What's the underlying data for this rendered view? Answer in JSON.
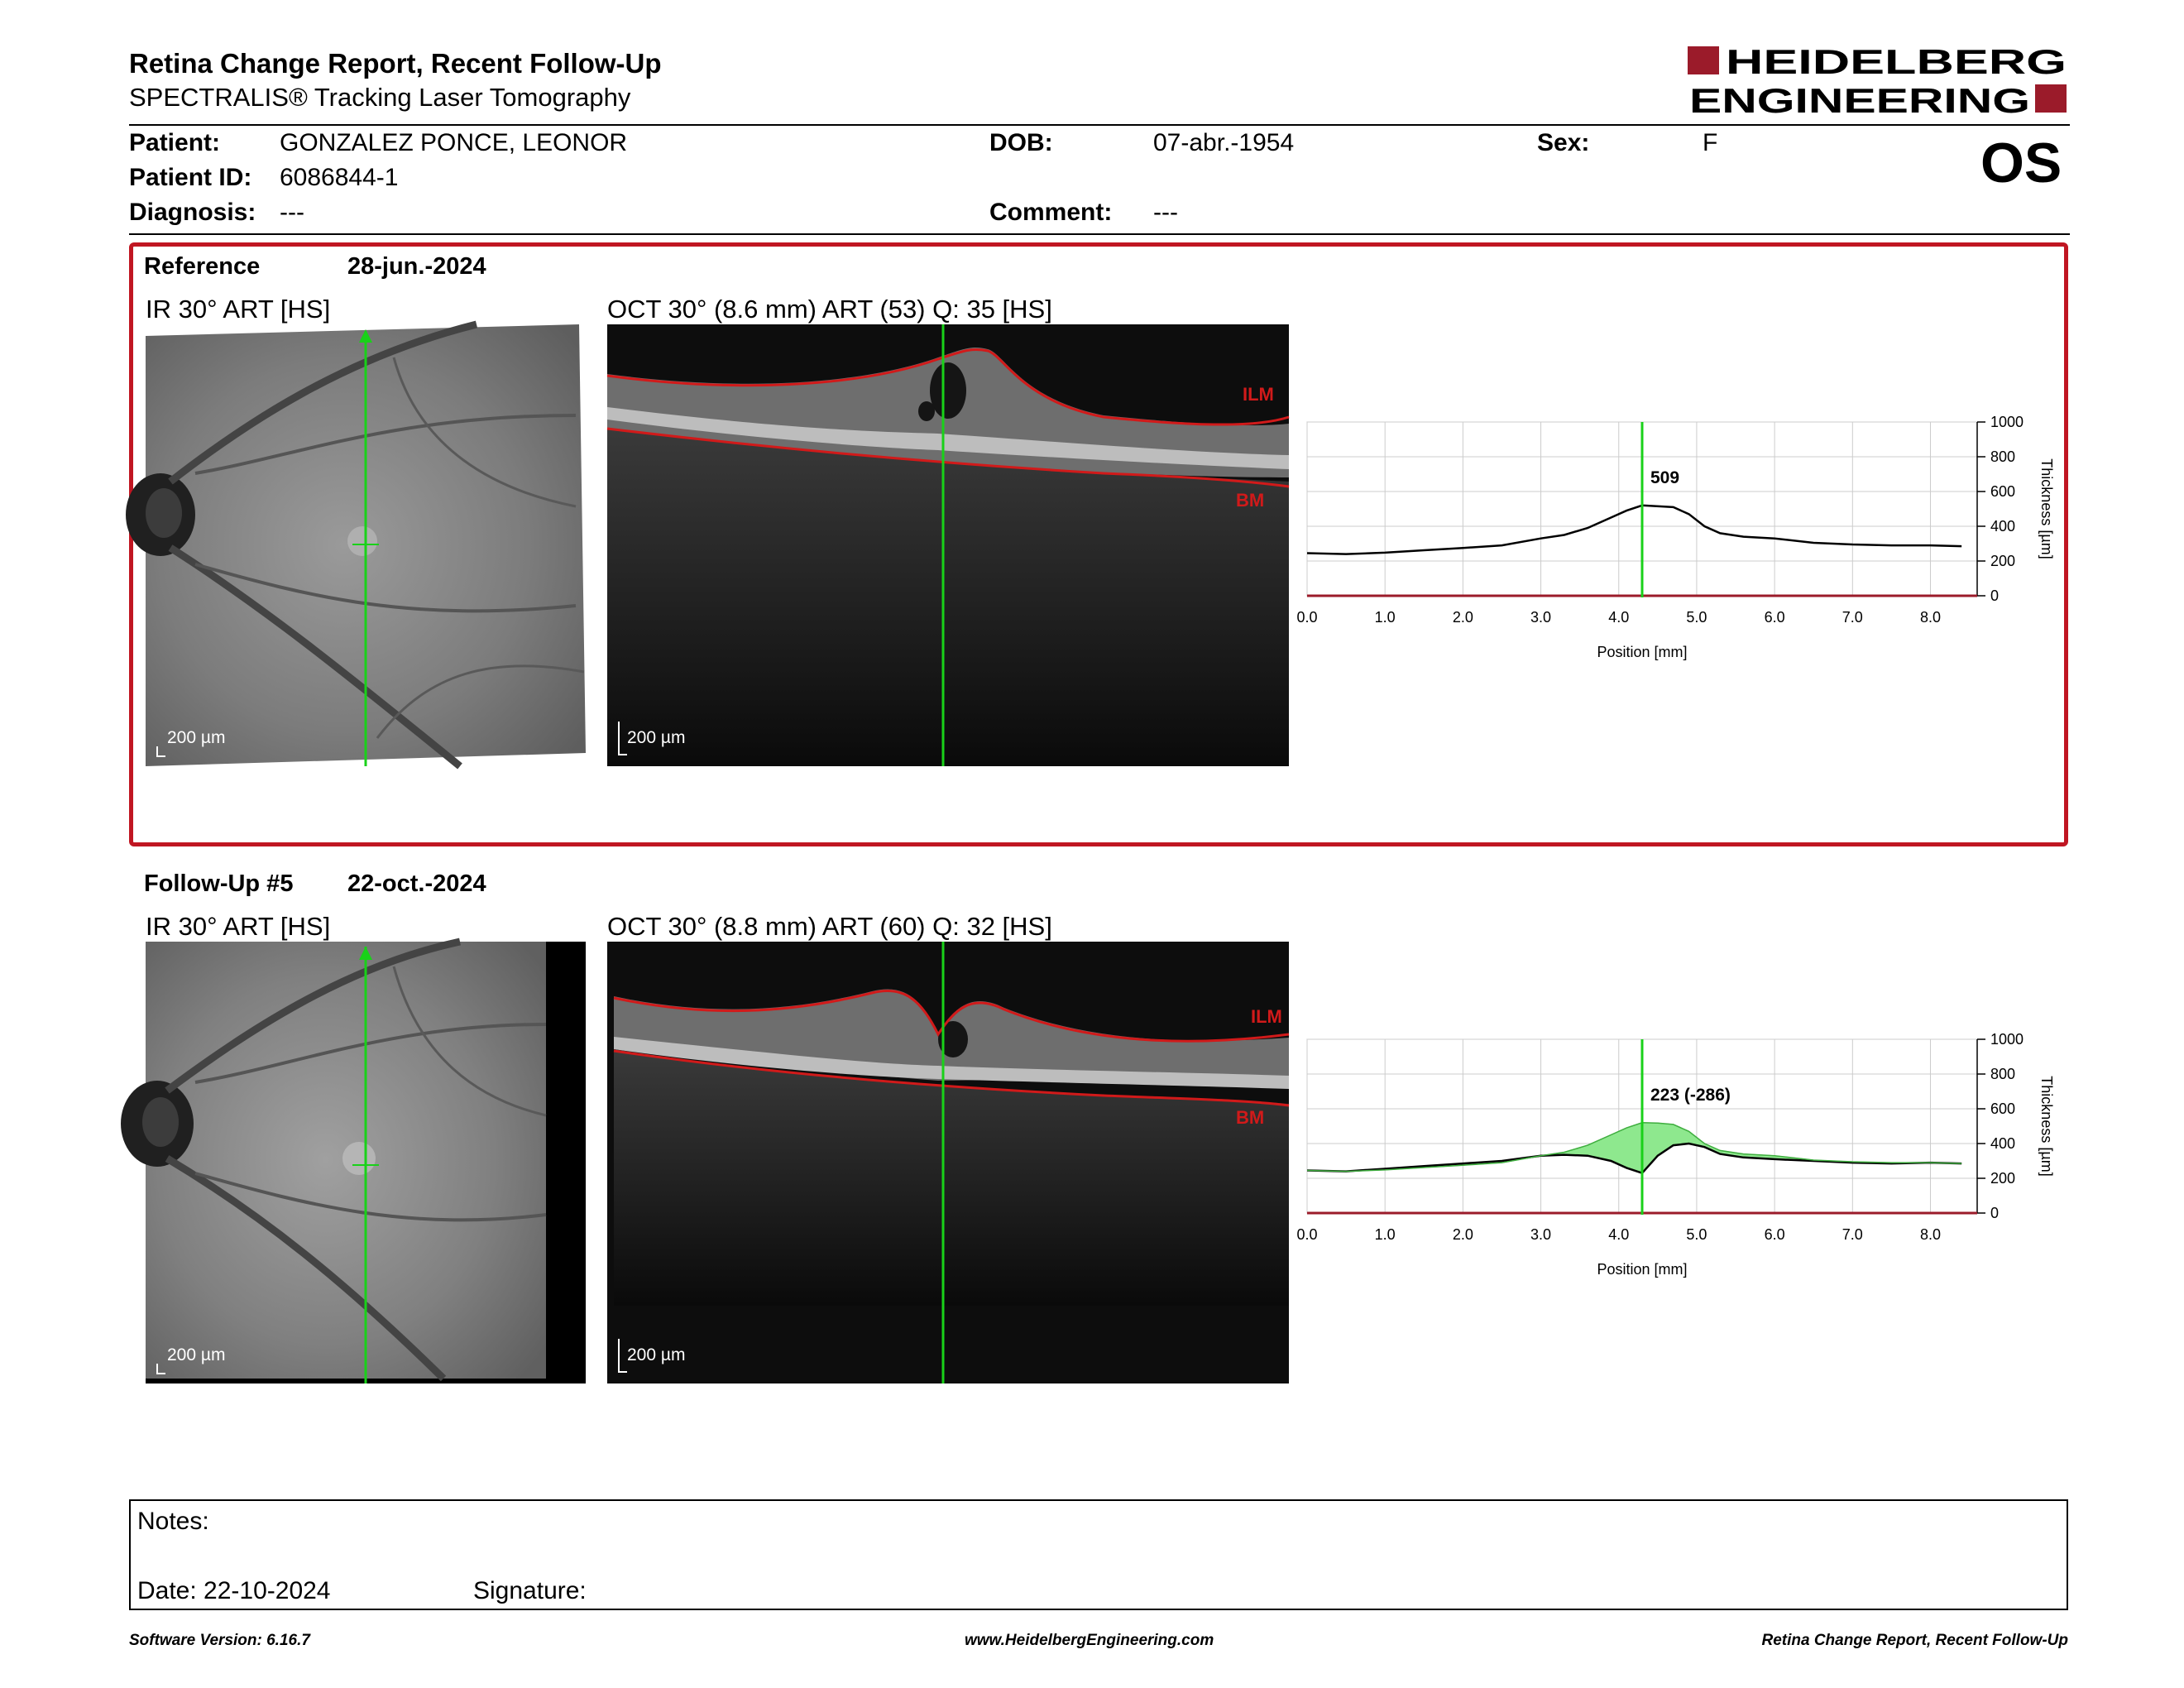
{
  "header": {
    "title": "Retina Change Report, Recent Follow-Up",
    "subtitle": "SPECTRALIS® Tracking Laser Tomography",
    "logo_line1": "HEIDELBERG",
    "logo_line2": "ENGINEERING"
  },
  "patient": {
    "patient_label": "Patient:",
    "patient_value": "GONZALEZ PONCE, LEONOR",
    "id_label": "Patient ID:",
    "id_value": "6086844-1",
    "diagnosis_label": "Diagnosis:",
    "diagnosis_value": "---",
    "dob_label": "DOB:",
    "dob_value": "07-abr.-1954",
    "comment_label": "Comment:",
    "comment_value": "---",
    "sex_label": "Sex:",
    "sex_value": "F",
    "eye": "OS"
  },
  "reference": {
    "label": "Reference",
    "date": "28-jun.-2024",
    "ir_title": "IR 30° ART [HS]",
    "oct_title": "OCT 30° (8.6 mm) ART (53) Q: 35 [HS]",
    "ir_scale": "200 µm",
    "oct_scale": "200 µm",
    "layer_top": "ILM",
    "layer_bottom": "BM"
  },
  "followup": {
    "label": "Follow-Up #5",
    "date": "22-oct.-2024",
    "ir_title": "IR 30° ART [HS]",
    "oct_title": "OCT 30° (8.8 mm) ART (60) Q: 32 [HS]",
    "ir_scale": "200 µm",
    "oct_scale": "200 µm",
    "layer_top": "ILM",
    "layer_bottom": "BM"
  },
  "chart_data": [
    {
      "type": "line",
      "xlabel": "Position [mm]",
      "ylabel": "Thickness [µm]",
      "xlim": [
        0,
        8.6
      ],
      "ylim": [
        0,
        1000
      ],
      "x_ticks": [
        "0.0",
        "1.0",
        "2.0",
        "3.0",
        "4.0",
        "5.0",
        "6.0",
        "7.0",
        "8.0"
      ],
      "y_ticks": [
        "0",
        "200",
        "400",
        "600",
        "800",
        "1000"
      ],
      "cursor_x": 4.3,
      "annotation": "509",
      "series": [
        {
          "x": [
            0.0,
            0.5,
            1.0,
            1.5,
            2.0,
            2.5,
            3.0,
            3.3,
            3.6,
            3.9,
            4.1,
            4.3,
            4.7,
            4.9,
            5.1,
            5.3,
            5.6,
            6.0,
            6.5,
            7.0,
            7.5,
            8.0,
            8.4
          ],
          "y": [
            245,
            240,
            248,
            262,
            275,
            290,
            330,
            350,
            390,
            450,
            490,
            520,
            510,
            470,
            400,
            360,
            340,
            330,
            305,
            295,
            290,
            290,
            285
          ]
        }
      ]
    },
    {
      "type": "line",
      "xlabel": "Position [mm]",
      "ylabel": "Thickness [µm]",
      "xlim": [
        0,
        8.6
      ],
      "ylim": [
        0,
        1000
      ],
      "x_ticks": [
        "0.0",
        "1.0",
        "2.0",
        "3.0",
        "4.0",
        "5.0",
        "6.0",
        "7.0",
        "8.0"
      ],
      "y_ticks": [
        "0",
        "200",
        "400",
        "600",
        "800",
        "1000"
      ],
      "cursor_x": 4.3,
      "annotation": "223 (-286)",
      "series": [
        {
          "x": [
            0.0,
            0.5,
            1.0,
            1.5,
            2.0,
            2.5,
            3.0,
            3.3,
            3.6,
            3.9,
            4.1,
            4.3,
            4.5,
            4.7,
            4.9,
            5.1,
            5.3,
            5.6,
            6.0,
            6.5,
            7.0,
            7.5,
            8.0,
            8.4
          ],
          "y": [
            245,
            240,
            255,
            270,
            285,
            300,
            330,
            335,
            330,
            300,
            260,
            230,
            330,
            390,
            400,
            380,
            340,
            320,
            310,
            300,
            290,
            285,
            290,
            285
          ]
        },
        {
          "x": [
            0.0,
            0.5,
            1.0,
            1.5,
            2.0,
            2.5,
            3.0,
            3.3,
            3.6,
            3.9,
            4.1,
            4.3,
            4.5,
            4.7,
            4.9,
            5.1,
            5.3,
            5.6,
            6.0,
            6.5,
            7.0,
            7.5,
            8.0,
            8.4
          ],
          "y": [
            245,
            240,
            248,
            262,
            275,
            290,
            330,
            350,
            390,
            450,
            490,
            520,
            518,
            510,
            470,
            400,
            360,
            340,
            330,
            305,
            295,
            290,
            290,
            285
          ]
        }
      ]
    }
  ],
  "notes": {
    "label": "Notes:",
    "date_label": "Date: 22-10-2024",
    "signature_label": "Signature:"
  },
  "footer": {
    "software": "Software Version: 6.16.7",
    "url": "www.HeidelbergEngineering.com",
    "report": "Retina Change Report, Recent Follow-Up"
  },
  "colors": {
    "brand": "#9b1b2a",
    "reference_border": "#c01622",
    "cursor": "#19d119",
    "layer": "#d11a1a",
    "change_fill": "#8ee88e"
  }
}
